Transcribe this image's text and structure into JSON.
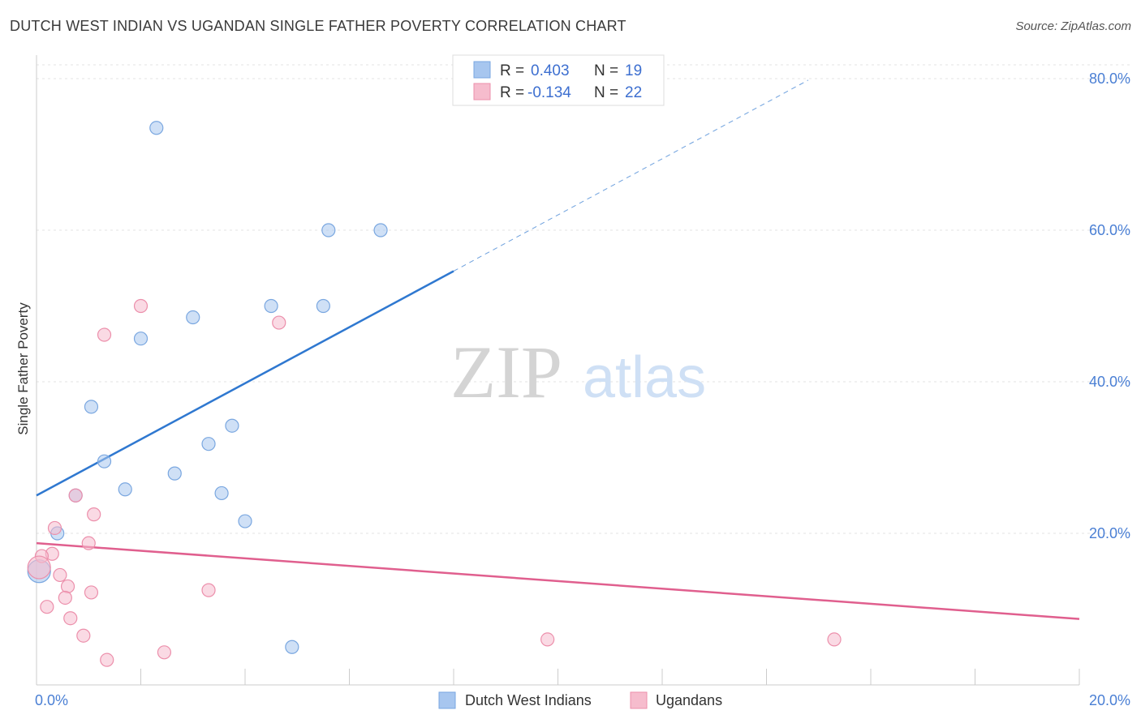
{
  "chart_data": {
    "type": "scatter",
    "title": "DUTCH WEST INDIAN VS UGANDAN SINGLE FATHER POVERTY CORRELATION CHART",
    "source": "Source: ZipAtlas.com",
    "xlabel": "",
    "ylabel": "Single Father Poverty",
    "xlim": [
      0,
      20
    ],
    "ylim": [
      0,
      80
    ],
    "x_tick_labels": [
      "0.0%",
      "20.0%"
    ],
    "y_ticks": [
      20,
      40,
      60,
      80
    ],
    "y_tick_labels": [
      "20.0%",
      "40.0%",
      "60.0%",
      "80.0%"
    ],
    "watermark": {
      "part1": "ZIP",
      "part2": "atlas"
    },
    "legend": {
      "rows": [
        {
          "r_label": "R =",
          "r_value": "0.403",
          "n_label": "N =",
          "n_value": "19"
        },
        {
          "r_label": "R =",
          "r_value": "-0.134",
          "n_label": "N =",
          "n_value": "22"
        }
      ]
    },
    "series": [
      {
        "name": "Dutch West Indians",
        "color": "#a7c6ef",
        "stroke": "#7aa7e0",
        "line_color": "#2f78d0",
        "trend": {
          "x0": 0,
          "y0": 25.0,
          "x1": 8.0,
          "y1": 54.6,
          "dash_to_x": 14.8,
          "dash_to_y": 79.8
        },
        "points": [
          [
            2.3,
            73.5
          ],
          [
            5.6,
            60.0
          ],
          [
            6.6,
            60.0
          ],
          [
            3.0,
            48.5
          ],
          [
            4.5,
            50.0
          ],
          [
            5.5,
            50.0
          ],
          [
            2.0,
            45.7
          ],
          [
            1.05,
            36.7
          ],
          [
            3.75,
            34.2
          ],
          [
            3.3,
            31.8
          ],
          [
            1.3,
            29.5
          ],
          [
            2.65,
            27.9
          ],
          [
            1.7,
            25.8
          ],
          [
            3.55,
            25.3
          ],
          [
            0.75,
            25.0
          ],
          [
            4.0,
            21.6
          ],
          [
            0.4,
            20.0
          ],
          [
            0.05,
            15.0
          ],
          [
            4.9,
            5.0
          ]
        ]
      },
      {
        "name": "Ugandans",
        "color": "#f6bccd",
        "stroke": "#ec8fab",
        "line_color": "#e05f8e",
        "trend": {
          "x0": 0,
          "y0": 18.7,
          "x1": 20,
          "y1": 8.7
        },
        "points": [
          [
            2.0,
            50.0
          ],
          [
            4.65,
            47.8
          ],
          [
            1.3,
            46.2
          ],
          [
            0.75,
            25.0
          ],
          [
            1.1,
            22.5
          ],
          [
            0.35,
            20.7
          ],
          [
            1.0,
            18.7
          ],
          [
            0.3,
            17.3
          ],
          [
            0.1,
            17.0
          ],
          [
            0.45,
            14.5
          ],
          [
            0.6,
            13.0
          ],
          [
            1.05,
            12.2
          ],
          [
            3.3,
            12.5
          ],
          [
            0.55,
            11.5
          ],
          [
            0.2,
            10.3
          ],
          [
            0.65,
            8.8
          ],
          [
            0.9,
            6.5
          ],
          [
            9.8,
            6.0
          ],
          [
            15.3,
            6.0
          ],
          [
            2.45,
            4.3
          ],
          [
            1.35,
            3.3
          ],
          [
            0.05,
            15.5
          ]
        ]
      }
    ]
  }
}
